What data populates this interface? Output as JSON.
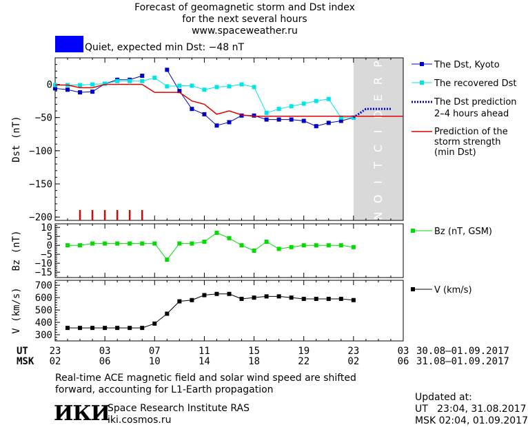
{
  "header": {
    "title_line1": "Forecast of geomagnetic storm and Dst index",
    "title_line2": "for the next several hours",
    "site": "www.spaceweather.ru"
  },
  "status": {
    "text": "Quiet, expected min Dst: −48 nT",
    "color": "#0000ff"
  },
  "prediction_band_label": "PREDICTION",
  "footer": {
    "note_line1": "Real-time ACE magnetic field and solar wind speed are shifted",
    "note_line2": "forward, accounting for L1-Earth propagation",
    "institute_name": "Space Research Institute RAS",
    "institute_site": "iki.cosmos.ru",
    "logo_text": "ИКИ",
    "updated_title": "Updated at:",
    "updated_ut": "UT   23:04, 31.08.2017",
    "updated_msk": "MSK 02:04, 01.09.2017"
  },
  "time_axis": {
    "ut_label": "UT",
    "msk_label": "MSK",
    "ut_ticks": [
      "23",
      "03",
      "07",
      "11",
      "15",
      "19",
      "23",
      "03"
    ],
    "msk_ticks": [
      "02",
      "06",
      "10",
      "14",
      "18",
      "22",
      "02",
      "06"
    ],
    "ut_range": "30.08–01.09.2017",
    "msk_range": "31.08–01.09.2017"
  },
  "chart_data": [
    {
      "type": "line",
      "panel": "dst",
      "ylabel": "Dst (nT)",
      "ylim": [
        -205,
        40
      ],
      "yticks": [
        0,
        -50,
        -100,
        -150,
        -200
      ],
      "x_unit": "hours since 23 UT, 30.08.2017",
      "xlim": [
        0,
        28
      ],
      "prediction_from_hour": 24,
      "series": [
        {
          "name": "The Dst, Kyoto",
          "color": "#0000cc",
          "marker": "square",
          "x": [
            0,
            1,
            2,
            3,
            4,
            5,
            6,
            7,
            8,
            9,
            10,
            11,
            12,
            13,
            14,
            15,
            16,
            17,
            18,
            19,
            20,
            21,
            22,
            23,
            24
          ],
          "y": [
            -6,
            -8,
            -12,
            -11,
            1,
            7,
            7,
            13,
            null,
            22,
            -10,
            -37,
            -45,
            -62,
            -57,
            -47,
            -47,
            -53,
            -53,
            -53,
            -55,
            -63,
            -58,
            -55,
            -50
          ]
        },
        {
          "name": "The recovered Dst",
          "color": "#00e5e5",
          "marker": "square",
          "x": [
            0,
            1,
            2,
            3,
            4,
            5,
            6,
            7,
            8,
            9,
            10,
            11,
            12,
            13,
            14,
            15,
            16,
            17,
            18,
            19,
            20,
            21,
            22,
            23,
            24
          ],
          "y": [
            -1,
            -1,
            -1,
            0,
            1,
            5,
            5,
            5,
            10,
            -3,
            -2,
            -2,
            -8,
            -4,
            -3,
            0,
            -4,
            -43,
            -37,
            -33,
            -29,
            -25,
            -22,
            -50,
            -50
          ]
        },
        {
          "name": "The Dst prediction 2–4 hours ahead",
          "color": "#0000cc",
          "style": "dotted",
          "x": [
            24,
            25,
            26,
            27
          ],
          "y": [
            -50,
            -37,
            -37,
            -37
          ]
        },
        {
          "name": "Prediction of the storm strength (min Dst)",
          "color": "#e00000",
          "x": [
            0,
            1,
            2,
            3,
            4,
            5,
            6,
            7,
            8,
            9,
            10,
            11,
            12,
            13,
            14,
            15,
            16,
            17,
            18,
            19,
            20,
            21,
            22,
            23,
            24,
            25,
            26,
            27,
            28
          ],
          "y": [
            -1,
            -1,
            -5,
            -5,
            0,
            0,
            0,
            0,
            -12,
            -12,
            -12,
            -25,
            -30,
            -45,
            -40,
            -46,
            -48,
            -48,
            -48,
            -48,
            -48,
            -48,
            -48,
            -48,
            -48,
            -48,
            -48,
            -48,
            -48
          ]
        }
      ],
      "storm_markers": {
        "color": "#e00000",
        "x": [
          2,
          3,
          4,
          5,
          6,
          7
        ]
      }
    },
    {
      "type": "line",
      "panel": "bz",
      "ylabel": "Bz (nT)",
      "ylim": [
        -18,
        12
      ],
      "yticks": [
        10,
        5,
        0,
        -5,
        -10,
        -15
      ],
      "series": [
        {
          "name": "Bz (nT, GSM)",
          "color": "#00dd00",
          "marker": "square",
          "x": [
            1,
            2,
            3,
            4,
            5,
            6,
            7,
            8,
            9,
            10,
            11,
            12,
            13,
            14,
            15,
            16,
            17,
            18,
            19,
            20,
            21,
            22,
            23,
            24
          ],
          "y": [
            0,
            0,
            1,
            1,
            1,
            1,
            1,
            1,
            -8,
            1,
            1,
            2,
            7,
            4,
            0,
            -3,
            2,
            -2,
            -1,
            0,
            0,
            0,
            0,
            -1
          ]
        }
      ]
    },
    {
      "type": "line",
      "panel": "v",
      "ylabel": "V (km/s)",
      "ylim": [
        250,
        740
      ],
      "yticks": [
        700,
        600,
        500,
        400,
        300
      ],
      "series": [
        {
          "name": "V (km/s)",
          "color": "#000000",
          "marker": "square",
          "x": [
            1,
            2,
            3,
            4,
            5,
            6,
            7,
            8,
            9,
            10,
            11,
            12,
            13,
            14,
            15,
            16,
            17,
            18,
            19,
            20,
            21,
            22,
            23,
            24
          ],
          "y": [
            355,
            355,
            355,
            355,
            355,
            355,
            355,
            390,
            470,
            570,
            580,
            620,
            630,
            630,
            590,
            600,
            610,
            610,
            600,
            590,
            590,
            590,
            590,
            580
          ]
        }
      ]
    }
  ]
}
